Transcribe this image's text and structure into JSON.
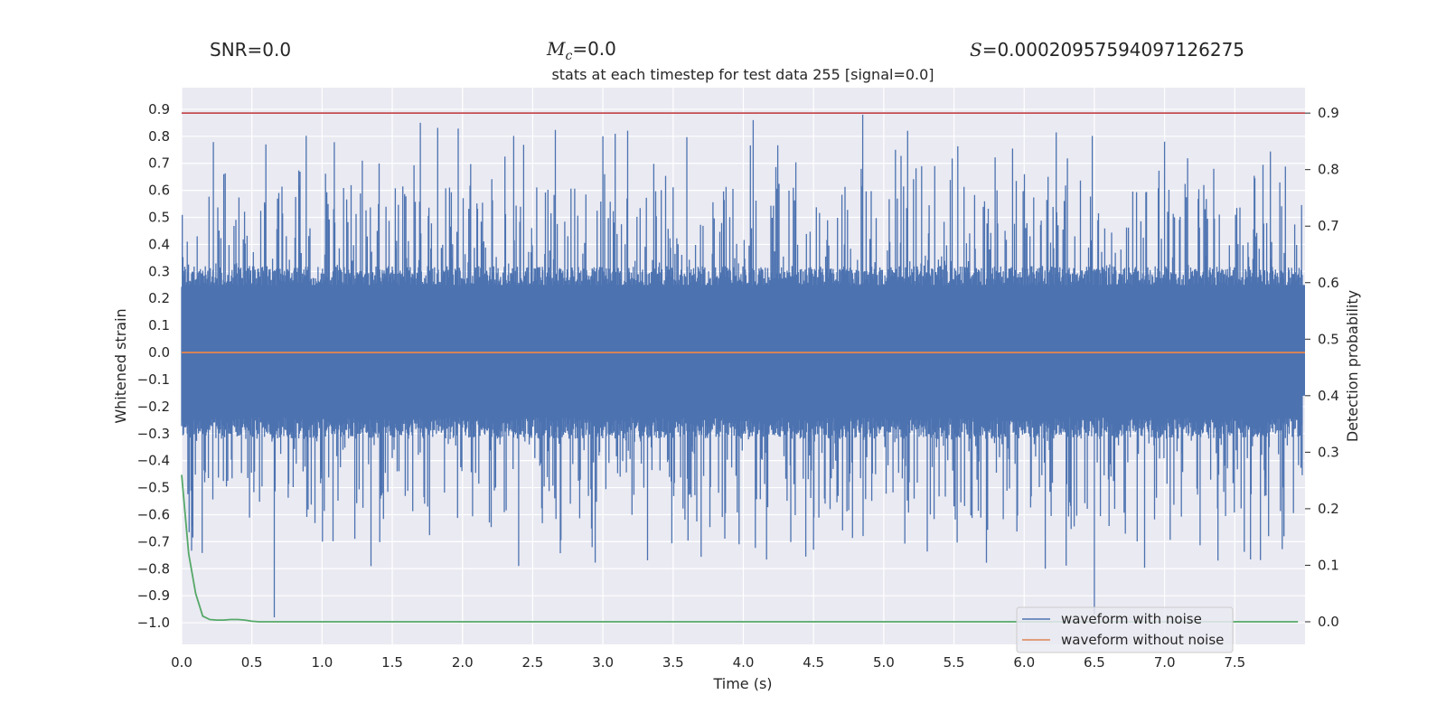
{
  "stats": {
    "snr": "SNR=0.0",
    "mc_symbol": "M",
    "mc_sub": "c",
    "mc_value": "=0.0",
    "s_symbol": "S",
    "s_value": "=0.00020957594097126275"
  },
  "chart_data": {
    "type": "line",
    "title": "stats at each timestep for test data 255 [signal=0.0]",
    "xlabel": "Time (s)",
    "ylabel": "Whitened strain",
    "y2label": "Detection probability",
    "xlim": [
      0.0,
      8.0
    ],
    "ylim": [
      -1.08,
      0.98
    ],
    "y2lim": [
      -0.04,
      0.945
    ],
    "x_ticks": [
      "0.0",
      "0.5",
      "1.0",
      "1.5",
      "2.0",
      "2.5",
      "3.0",
      "3.5",
      "4.0",
      "4.5",
      "5.0",
      "5.5",
      "6.0",
      "6.5",
      "7.0",
      "7.5"
    ],
    "y_ticks": [
      "0.9",
      "0.8",
      "0.7",
      "0.6",
      "0.5",
      "0.4",
      "0.3",
      "0.2",
      "0.1",
      "0.0",
      "−0.1",
      "−0.2",
      "−0.3",
      "−0.4",
      "−0.5",
      "−0.6",
      "−0.7",
      "−0.8",
      "−0.9",
      "−1.0"
    ],
    "y2_ticks": [
      "0.9",
      "0.8",
      "0.7",
      "0.6",
      "0.5",
      "0.4",
      "0.3",
      "0.2",
      "0.1",
      "0.0"
    ],
    "threshold": 0.9,
    "series": [
      {
        "name": "waveform with noise",
        "color": "#4c72b0",
        "description": "noise with core amplitude about ±0.28 and spikes up to about +0.88 / −0.98"
      },
      {
        "name": "waveform without noise",
        "color": "#dd8452",
        "values_constant": 0.0
      },
      {
        "name": "detection probability",
        "color": "#55a868",
        "x": [
          0.0,
          0.05,
          0.1,
          0.15,
          0.2,
          0.25,
          0.3,
          0.35,
          0.4,
          0.45,
          0.5,
          0.55,
          0.6,
          0.65,
          0.7,
          7.95
        ],
        "y": [
          0.26,
          0.12,
          0.05,
          0.01,
          0.004,
          0.003,
          0.003,
          0.004,
          0.004,
          0.003,
          0.001,
          0.0,
          0.0,
          0.0,
          0.0,
          0.0
        ]
      },
      {
        "name": "threshold",
        "color": "#c44e52",
        "values_constant": 0.9
      }
    ],
    "legend": {
      "position": "bottom-right",
      "entries": [
        "waveform with noise",
        "waveform without noise"
      ]
    }
  }
}
